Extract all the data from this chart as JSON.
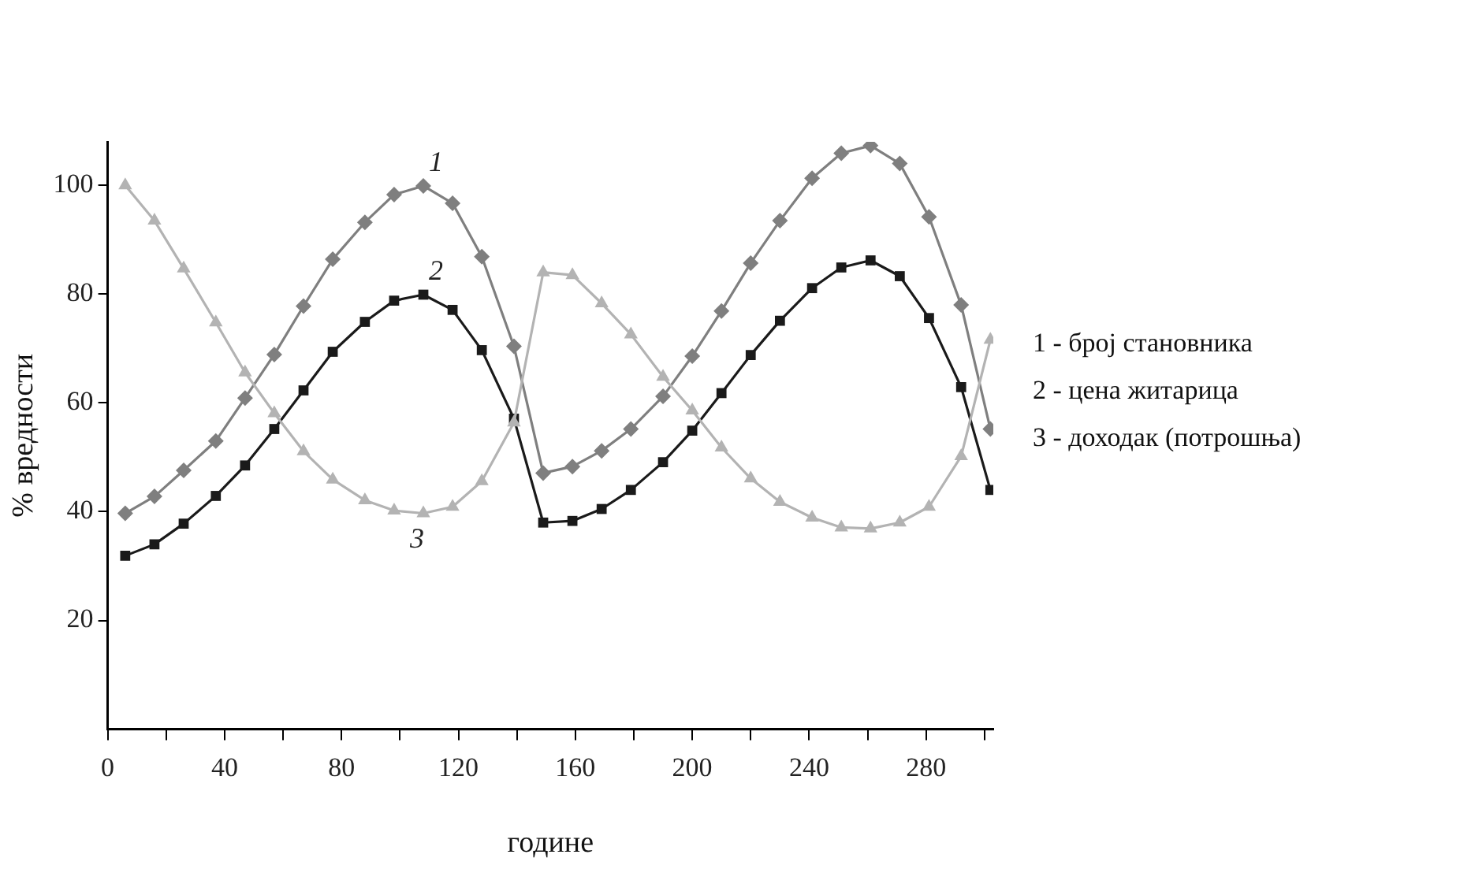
{
  "chart_data": {
    "type": "line",
    "xlabel": "године",
    "ylabel": "% вредности",
    "x": [
      6,
      16,
      26,
      37,
      47,
      57,
      67,
      77,
      88,
      98,
      108,
      118,
      128,
      139,
      149,
      159,
      169,
      179,
      190,
      200,
      210,
      220,
      230,
      241,
      251,
      261,
      271,
      281,
      292,
      302
    ],
    "xlim": [
      0,
      303
    ],
    "xticks": [
      0,
      {
        "value": 20,
        "label": null
      },
      40,
      {
        "value": 60,
        "label": null
      },
      80,
      {
        "value": 100,
        "label": null
      },
      120,
      {
        "value": 140,
        "label": null
      },
      160,
      {
        "value": 180,
        "label": null
      },
      200,
      {
        "value": 220,
        "label": null
      },
      240,
      {
        "value": 260,
        "label": null
      },
      280,
      {
        "value": 300,
        "label": null
      }
    ],
    "ylim": [
      0,
      108
    ],
    "yticks": [
      20,
      40,
      60,
      80,
      100
    ],
    "grid": false,
    "legend": false,
    "line_style": "solid",
    "series": [
      {
        "name": "1",
        "color": "#7f7f7f",
        "marker": "diamond",
        "values": [
          39.7,
          42.8,
          47.6,
          53,
          60.9,
          68.9,
          77.8,
          86.4,
          93.2,
          98.3,
          99.9,
          96.7,
          86.9,
          70.4,
          47.1,
          48.3,
          51.2,
          55.2,
          61.2,
          68.6,
          76.9,
          85.7,
          93.5,
          101.3,
          105.9,
          107.3,
          104,
          94.2,
          78,
          55.2
        ]
      },
      {
        "name": "2",
        "color": "#1a1a1a",
        "marker": "square",
        "values": [
          31.9,
          34,
          37.8,
          42.9,
          48.5,
          55.2,
          62.3,
          69.4,
          74.9,
          78.8,
          79.9,
          77.1,
          69.7,
          57.1,
          38,
          38.3,
          40.5,
          44,
          49.1,
          54.9,
          61.8,
          68.8,
          75.1,
          81.1,
          84.9,
          86.2,
          83.3,
          75.6,
          62.9,
          44
        ]
      },
      {
        "name": "3",
        "color": "#b3b3b3",
        "marker": "triangle",
        "values": [
          100,
          93.5,
          84.7,
          74.8,
          65.6,
          58.1,
          51.1,
          45.9,
          42.1,
          40.2,
          39.7,
          40.9,
          45.6,
          56.4,
          84,
          83.5,
          78.3,
          72.6,
          64.8,
          58.6,
          51.8,
          46.1,
          41.8,
          38.9,
          37.1,
          36.9,
          38,
          40.9,
          50.2,
          71.6
        ]
      }
    ],
    "annotations": [
      "1 - број становника",
      "2 - цена житарица",
      "3 - доходак (потрошња)"
    ]
  }
}
